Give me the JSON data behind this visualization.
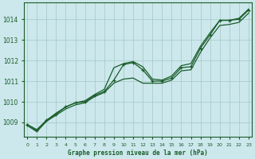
{
  "title": "Graphe pression niveau de la mer (hPa)",
  "background_color": "#cce8ec",
  "grid_color": "#aacccc",
  "line_color": "#1a5c2a",
  "text_color": "#1a5c2a",
  "x_ticks": [
    0,
    1,
    2,
    3,
    4,
    5,
    6,
    7,
    8,
    9,
    10,
    11,
    12,
    13,
    14,
    15,
    16,
    17,
    18,
    19,
    20,
    21,
    22,
    23
  ],
  "y_ticks": [
    1009,
    1010,
    1011,
    1012,
    1013,
    1014
  ],
  "ylim": [
    1008.3,
    1014.8
  ],
  "xlim": [
    -0.3,
    23.3
  ],
  "series_line1": [
    1008.9,
    1008.65,
    1009.1,
    1009.45,
    1009.75,
    1009.95,
    1010.05,
    1010.35,
    1010.6,
    1011.65,
    1011.85,
    1011.95,
    1011.7,
    1011.1,
    1011.05,
    1011.25,
    1011.75,
    1011.85,
    1012.7,
    1013.35,
    1013.95,
    1013.95,
    1014.05,
    1014.5
  ],
  "series_line2": [
    1008.85,
    1008.55,
    1009.05,
    1009.35,
    1009.65,
    1009.85,
    1009.95,
    1010.25,
    1010.45,
    1010.9,
    1011.1,
    1011.15,
    1010.9,
    1010.9,
    1010.9,
    1011.05,
    1011.5,
    1011.55,
    1012.4,
    1013.1,
    1013.7,
    1013.75,
    1013.85,
    1014.3
  ],
  "series_markers": [
    1008.9,
    1008.6,
    1009.1,
    1009.4,
    1009.75,
    1009.95,
    1010.0,
    1010.3,
    1010.5,
    1011.05,
    1011.8,
    1011.9,
    1011.55,
    1011.0,
    1011.0,
    1011.15,
    1011.65,
    1011.7,
    1012.6,
    1013.25,
    1013.95,
    1013.95,
    1014.0,
    1014.45
  ]
}
